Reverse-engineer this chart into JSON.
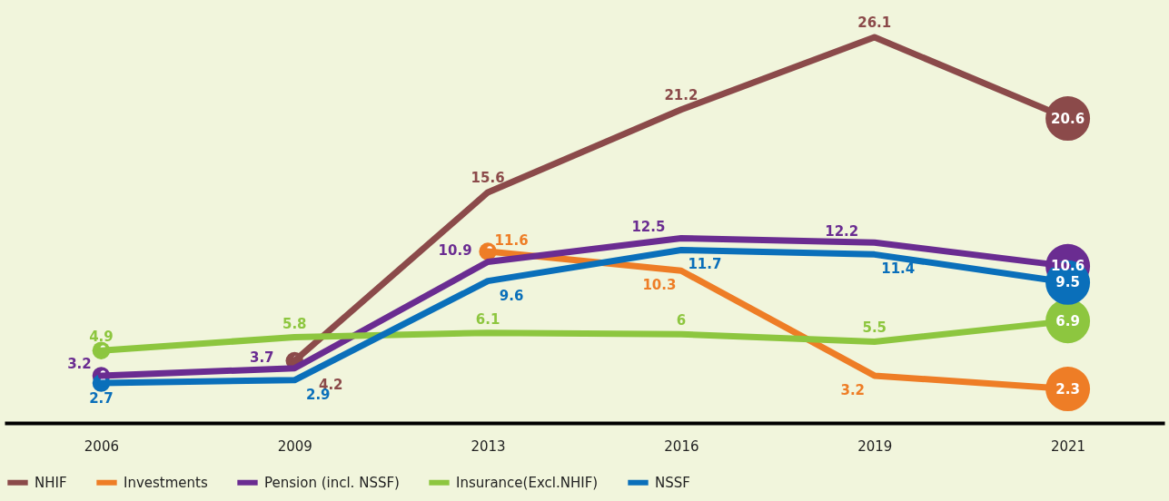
{
  "chart_data": {
    "type": "line",
    "categories": [
      "2006",
      "2009",
      "2013",
      "2016",
      "2019",
      "2021"
    ],
    "series": [
      {
        "name": "NHIF",
        "color": "#8b4a4a",
        "values": [
          null,
          4.2,
          15.6,
          21.2,
          26.1,
          20.6
        ]
      },
      {
        "name": "Investments",
        "color": "#ee7d26",
        "values": [
          null,
          null,
          11.6,
          10.3,
          3.2,
          2.3
        ]
      },
      {
        "name": "Pension (incl. NSSF)",
        "color": "#6a2c91",
        "values": [
          3.2,
          3.7,
          10.9,
          12.5,
          12.2,
          10.6
        ]
      },
      {
        "name": "Insurance(Excl.NHIF)",
        "color": "#8dc63f",
        "values": [
          4.9,
          5.8,
          6.1,
          6,
          5.5,
          6.9
        ]
      },
      {
        "name": "NSSF",
        "color": "#0a6fba",
        "values": [
          2.7,
          2.9,
          9.6,
          11.7,
          11.4,
          9.5
        ]
      }
    ],
    "data_labels": true,
    "legend": "bottom",
    "grid": false
  }
}
